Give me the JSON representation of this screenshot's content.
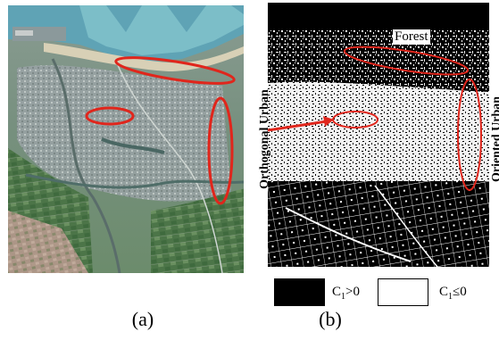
{
  "panel_a": {
    "caption": "(a)"
  },
  "panel_b": {
    "caption": "(b)",
    "labels": {
      "forest": "Forest",
      "orthogonal_urban": "Orthogonal Urban",
      "oriented_urban": "Oriented Urban"
    },
    "legend": [
      {
        "label_main": "C",
        "label_sub": "1",
        "label_rest": ">0",
        "swatch": "black"
      },
      {
        "label_main": "C",
        "label_sub": "1",
        "label_rest": "≤0",
        "swatch": "white"
      }
    ]
  },
  "colors": {
    "highlight_ellipse": "#e0261c",
    "sea": "#5fa3b5",
    "land": "#6f8a78"
  }
}
